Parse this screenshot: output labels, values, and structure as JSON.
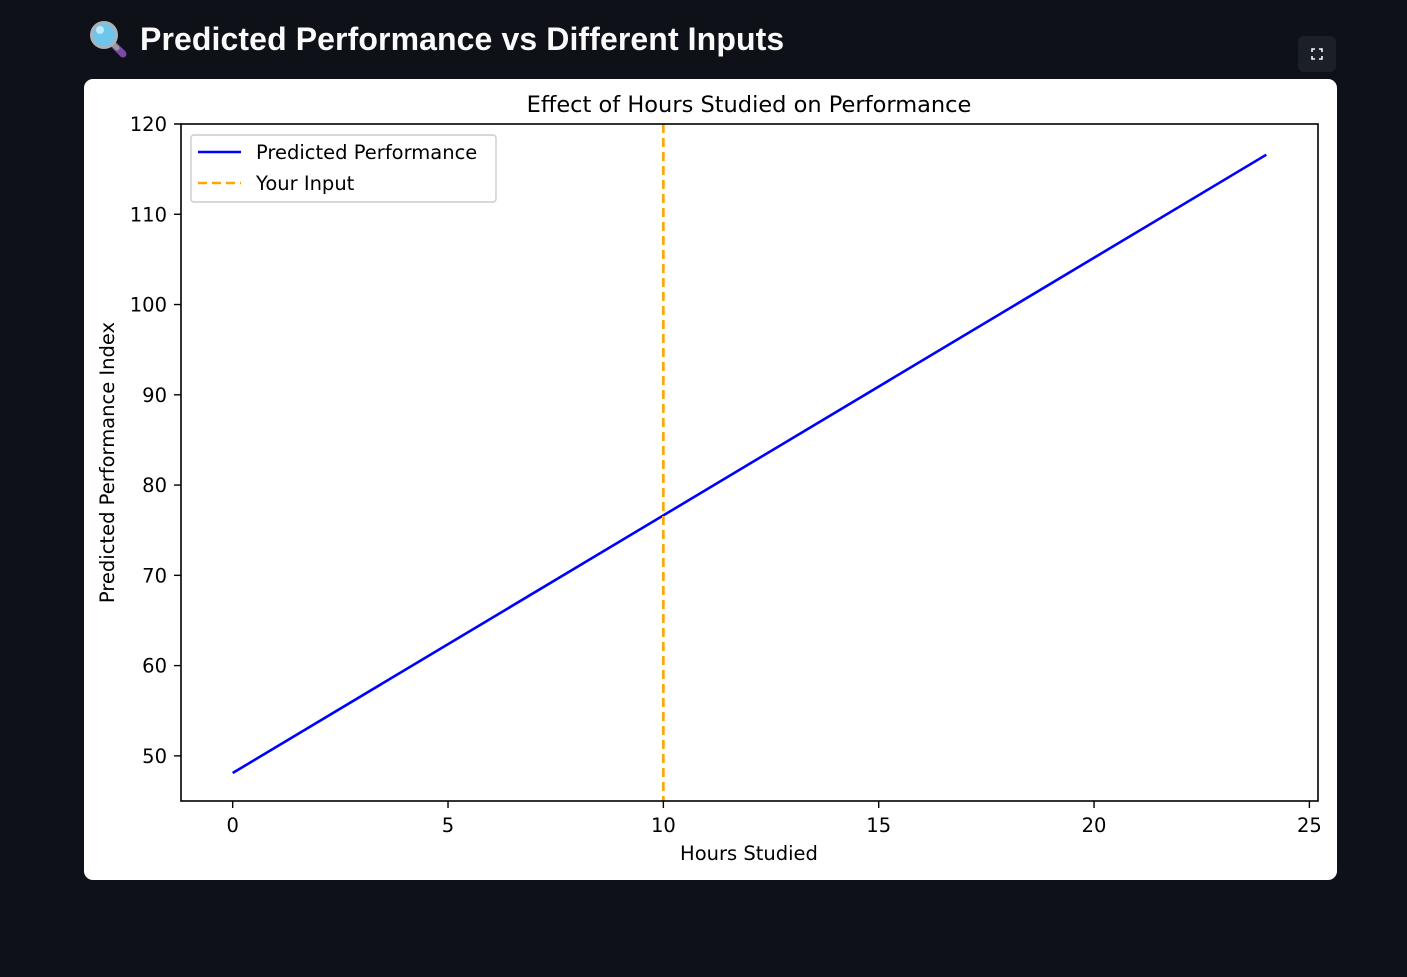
{
  "header": {
    "icon": "magnifying-glass-icon",
    "title": "Predicted Performance vs Different Inputs"
  },
  "toolbar": {
    "fullscreen_icon": "fullscreen-icon"
  },
  "chart_data": {
    "type": "line",
    "title": "Effect of Hours Studied on Performance",
    "xlabel": "Hours Studied",
    "ylabel": "Predicted Performance Index",
    "xlim": [
      -1.2,
      25.2
    ],
    "ylim": [
      45,
      120
    ],
    "xticks": [
      0,
      5,
      10,
      15,
      20,
      25
    ],
    "yticks": [
      50,
      60,
      70,
      80,
      90,
      100,
      110,
      120
    ],
    "grid": false,
    "legend_position": "upper-left",
    "series": [
      {
        "name": "Predicted Performance",
        "style": "solid",
        "color": "#0000ff",
        "x": [
          0,
          24
        ],
        "y": [
          48.1,
          116.6
        ]
      }
    ],
    "vlines": [
      {
        "name": "Your Input",
        "style": "dashed",
        "color": "#ffa500",
        "x": 10
      }
    ]
  }
}
